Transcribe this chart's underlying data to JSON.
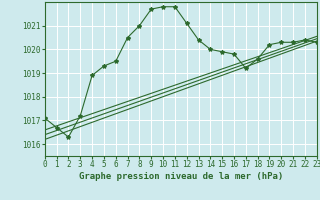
{
  "title": "Graphe pression niveau de la mer (hPa)",
  "background_color": "#ceeaed",
  "grid_color": "#ffffff",
  "line_color": "#2d6a2d",
  "xlim": [
    0,
    23
  ],
  "ylim": [
    1015.5,
    1022.0
  ],
  "yticks": [
    1016,
    1017,
    1018,
    1019,
    1020,
    1021
  ],
  "xticks": [
    0,
    1,
    2,
    3,
    4,
    5,
    6,
    7,
    8,
    9,
    10,
    11,
    12,
    13,
    14,
    15,
    16,
    17,
    18,
    19,
    20,
    21,
    22,
    23
  ],
  "series1_x": [
    0,
    1,
    2,
    3,
    4,
    5,
    6,
    7,
    8,
    9,
    10,
    11,
    12,
    13,
    14,
    15,
    16,
    17,
    18,
    19,
    20,
    21,
    22,
    23
  ],
  "series1_y": [
    1017.1,
    1016.7,
    1016.3,
    1017.2,
    1018.9,
    1019.3,
    1019.5,
    1020.5,
    1021.0,
    1021.7,
    1021.8,
    1021.8,
    1021.1,
    1020.4,
    1020.0,
    1019.9,
    1019.8,
    1019.2,
    1019.6,
    1020.2,
    1020.3,
    1020.3,
    1020.4,
    1020.3
  ],
  "series2_x": [
    0,
    23
  ],
  "series2_y": [
    1016.2,
    1020.35
  ],
  "series3_x": [
    0,
    23
  ],
  "series3_y": [
    1016.4,
    1020.45
  ],
  "series4_x": [
    0,
    23
  ],
  "series4_y": [
    1016.6,
    1020.55
  ],
  "ylabel_fontsize": 5.5,
  "xlabel_fontsize": 6.5,
  "tick_fontsize": 5.5
}
